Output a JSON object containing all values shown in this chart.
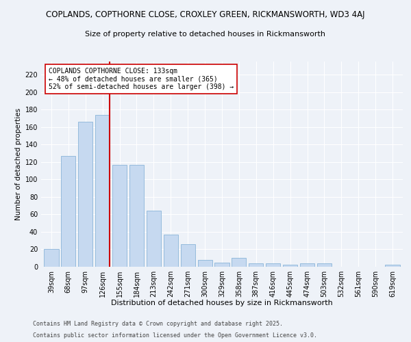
{
  "title1": "COPLANDS, COPTHORNE CLOSE, CROXLEY GREEN, RICKMANSWORTH, WD3 4AJ",
  "title2": "Size of property relative to detached houses in Rickmansworth",
  "xlabel": "Distribution of detached houses by size in Rickmansworth",
  "ylabel": "Number of detached properties",
  "categories": [
    "39sqm",
    "68sqm",
    "97sqm",
    "126sqm",
    "155sqm",
    "184sqm",
    "213sqm",
    "242sqm",
    "271sqm",
    "300sqm",
    "329sqm",
    "358sqm",
    "387sqm",
    "416sqm",
    "445sqm",
    "474sqm",
    "503sqm",
    "532sqm",
    "561sqm",
    "590sqm",
    "619sqm"
  ],
  "values": [
    20,
    127,
    166,
    174,
    117,
    117,
    64,
    37,
    26,
    8,
    5,
    10,
    4,
    4,
    2,
    4,
    4,
    0,
    0,
    0,
    2
  ],
  "bar_color": "#c6d9f0",
  "bar_edge_color": "#8ab4d8",
  "vline_color": "#cc0000",
  "annotation_text": "COPLANDS COPTHORNE CLOSE: 133sqm\n← 48% of detached houses are smaller (365)\n52% of semi-detached houses are larger (398) →",
  "annotation_box_color": "#ffffff",
  "annotation_box_edge": "#cc0000",
  "ylim": [
    0,
    235
  ],
  "yticks": [
    0,
    20,
    40,
    60,
    80,
    100,
    120,
    140,
    160,
    180,
    200,
    220
  ],
  "footer1": "Contains HM Land Registry data © Crown copyright and database right 2025.",
  "footer2": "Contains public sector information licensed under the Open Government Licence v3.0.",
  "bg_color": "#eef2f8",
  "plot_bg_color": "#eef2f8",
  "title1_fontsize": 8.5,
  "title2_fontsize": 8.0,
  "xlabel_fontsize": 8.0,
  "ylabel_fontsize": 7.5,
  "tick_fontsize": 7.0,
  "footer_fontsize": 6.0,
  "annotation_fontsize": 7.0,
  "vline_xindex": 3.42
}
